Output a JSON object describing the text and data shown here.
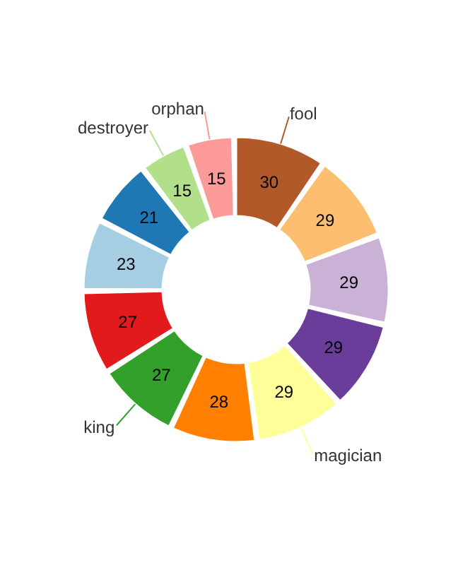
{
  "chart_data": {
    "type": "donut",
    "categories": [
      "fool",
      null,
      null,
      null,
      "magician",
      null,
      "king",
      null,
      null,
      null,
      "destroyer",
      "orphan"
    ],
    "values": [
      30,
      29,
      29,
      29,
      29,
      28,
      27,
      27,
      23,
      21,
      15,
      15
    ],
    "colors": [
      "#b15928",
      "#fdbf6f",
      "#cab2d6",
      "#6a3d9a",
      "#ffff99",
      "#ff7f00",
      "#33a02c",
      "#e31a1c",
      "#a6cee3",
      "#1f78b4",
      "#b2df8a",
      "#fb9a99"
    ],
    "data_labels": true,
    "legend": false
  }
}
